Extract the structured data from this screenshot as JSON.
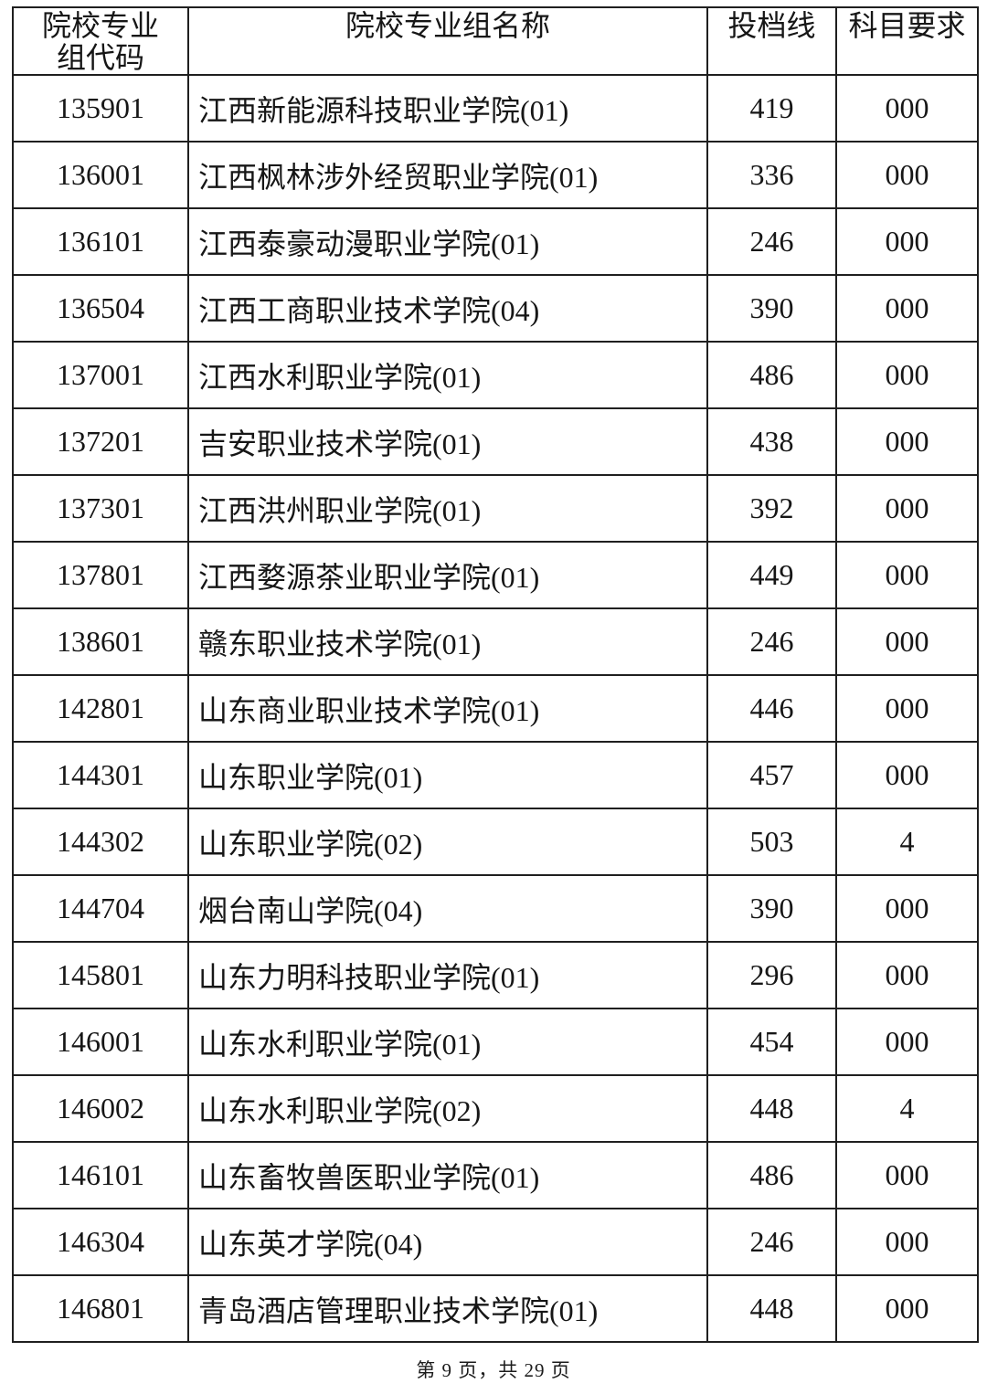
{
  "page": {
    "footer": "第 9 页，共 29 页"
  },
  "table": {
    "headers": {
      "code_line1": "院校专业",
      "code_line2": "组代码",
      "code_full": "院校专业组代码",
      "name": "院校专业组名称",
      "score": "投档线",
      "subject": "科目要求"
    },
    "rows": [
      {
        "code": "135901",
        "name": "江西新能源科技职业学院(01)",
        "score": "419",
        "subject": "000"
      },
      {
        "code": "136001",
        "name": "江西枫林涉外经贸职业学院(01)",
        "score": "336",
        "subject": "000"
      },
      {
        "code": "136101",
        "name": "江西泰豪动漫职业学院(01)",
        "score": "246",
        "subject": "000"
      },
      {
        "code": "136504",
        "name": "江西工商职业技术学院(04)",
        "score": "390",
        "subject": "000"
      },
      {
        "code": "137001",
        "name": "江西水利职业学院(01)",
        "score": "486",
        "subject": "000"
      },
      {
        "code": "137201",
        "name": "吉安职业技术学院(01)",
        "score": "438",
        "subject": "000"
      },
      {
        "code": "137301",
        "name": "江西洪州职业学院(01)",
        "score": "392",
        "subject": "000"
      },
      {
        "code": "137801",
        "name": "江西婺源茶业职业学院(01)",
        "score": "449",
        "subject": "000"
      },
      {
        "code": "138601",
        "name": "赣东职业技术学院(01)",
        "score": "246",
        "subject": "000"
      },
      {
        "code": "142801",
        "name": "山东商业职业技术学院(01)",
        "score": "446",
        "subject": "000"
      },
      {
        "code": "144301",
        "name": "山东职业学院(01)",
        "score": "457",
        "subject": "000"
      },
      {
        "code": "144302",
        "name": "山东职业学院(02)",
        "score": "503",
        "subject": "4"
      },
      {
        "code": "144704",
        "name": "烟台南山学院(04)",
        "score": "390",
        "subject": "000"
      },
      {
        "code": "145801",
        "name": "山东力明科技职业学院(01)",
        "score": "296",
        "subject": "000"
      },
      {
        "code": "146001",
        "name": "山东水利职业学院(01)",
        "score": "454",
        "subject": "000"
      },
      {
        "code": "146002",
        "name": "山东水利职业学院(02)",
        "score": "448",
        "subject": "4"
      },
      {
        "code": "146101",
        "name": "山东畜牧兽医职业学院(01)",
        "score": "486",
        "subject": "000"
      },
      {
        "code": "146304",
        "name": "山东英才学院(04)",
        "score": "246",
        "subject": "000"
      },
      {
        "code": "146801",
        "name": "青岛酒店管理职业技术学院(01)",
        "score": "448",
        "subject": "000"
      }
    ]
  }
}
